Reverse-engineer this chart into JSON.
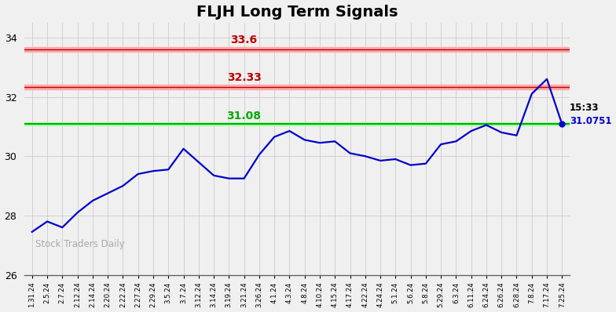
{
  "title": "FLJH Long Term Signals",
  "xlabels": [
    "1.31.24",
    "2.5.24",
    "2.7.24",
    "2.12.24",
    "2.14.24",
    "2.20.24",
    "2.22.24",
    "2.27.24",
    "2.29.24",
    "3.5.24",
    "3.7.24",
    "3.12.24",
    "3.14.24",
    "3.19.24",
    "3.21.24",
    "3.26.24",
    "4.1.24",
    "4.3.24",
    "4.8.24",
    "4.10.24",
    "4.15.24",
    "4.17.24",
    "4.22.24",
    "4.24.24",
    "5.1.24",
    "5.6.24",
    "5.8.24",
    "5.29.24",
    "6.3.24",
    "6.11.24",
    "6.24.24",
    "6.26.24",
    "6.28.24",
    "7.8.24",
    "7.17.24",
    "7.25.24"
  ],
  "prices": [
    27.45,
    27.8,
    27.6,
    28.1,
    28.5,
    28.75,
    29.0,
    29.4,
    29.5,
    29.55,
    30.25,
    29.8,
    29.35,
    29.25,
    29.25,
    30.05,
    30.65,
    30.85,
    30.55,
    30.45,
    30.5,
    30.1,
    30.0,
    29.85,
    29.9,
    29.7,
    29.75,
    30.4,
    30.5,
    30.85,
    31.05,
    30.8,
    30.7,
    32.1,
    32.6,
    31.08
  ],
  "hline_green": 31.08,
  "hline_red1": 32.33,
  "hline_red2": 33.6,
  "hline_green_color": "#00aa00",
  "hline_red_color": "#bb0000",
  "hline_red_fill": "#ffcccc",
  "hline_green_fill": "#ccffcc",
  "label_33_6": "33.6",
  "label_32_33": "32.33",
  "label_31_08": "31.08",
  "annotation_time": "15:33",
  "annotation_price": "31.0751",
  "line_color": "#0000cc",
  "dot_color": "#0000cc",
  "watermark": "Stock Traders Daily",
  "ylim": [
    26,
    34.5
  ],
  "yticks": [
    26,
    28,
    30,
    32,
    34
  ],
  "bg_color": "#f0f0f0",
  "grid_color": "#cccccc",
  "title_fontsize": 14
}
